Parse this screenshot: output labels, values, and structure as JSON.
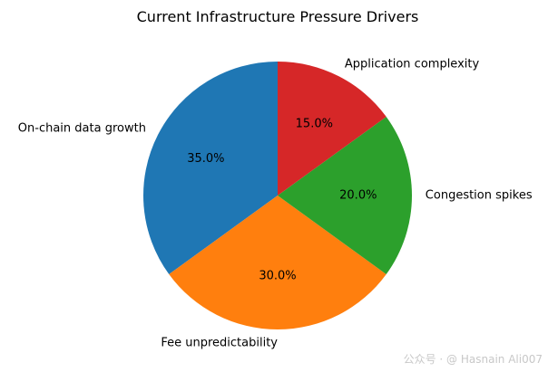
{
  "chart_data": {
    "type": "pie",
    "title": "Current Infrastructure Pressure Drivers",
    "categories": [
      "On-chain data growth",
      "Fee unpredictability",
      "Congestion spikes",
      "Application complexity"
    ],
    "values": [
      35,
      30,
      20,
      15
    ],
    "percent_labels": [
      "35.0%",
      "30.0%",
      "20.0%",
      "15.0%"
    ],
    "colors": [
      "#1f77b4",
      "#ff7f0e",
      "#2ca02c",
      "#d62728"
    ],
    "start_angle_deg": 90,
    "direction": "counterclockwise"
  },
  "watermark": "公众号 · @ Hasnain Ali007"
}
